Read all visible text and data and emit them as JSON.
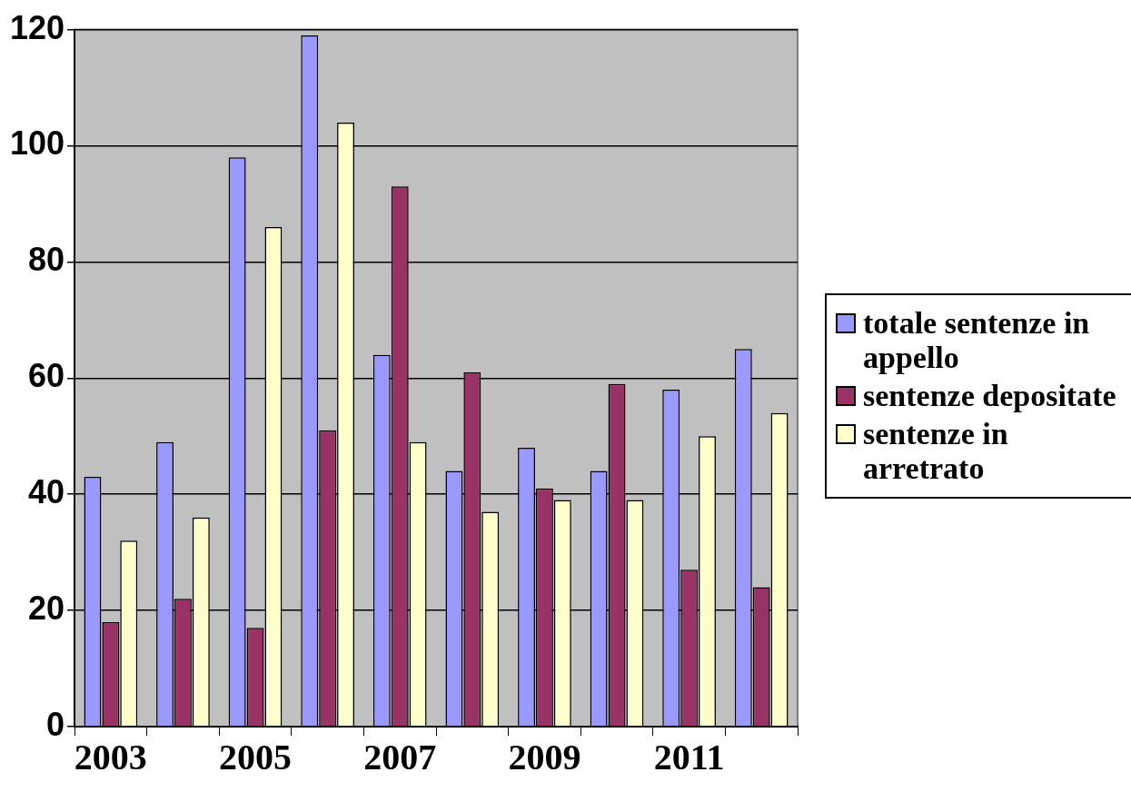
{
  "chart_data": {
    "type": "bar",
    "categories": [
      "2003",
      null,
      "2005",
      null,
      "2007",
      null,
      "2009",
      null,
      "2011",
      null
    ],
    "series": [
      {
        "name": "totale sentenze in appello",
        "color": "#9999ff",
        "values": [
          43,
          49,
          98,
          119,
          64,
          44,
          48,
          44,
          58,
          65
        ]
      },
      {
        "name": "sentenze depositate",
        "color": "#993366",
        "values": [
          18,
          22,
          17,
          51,
          93,
          61,
          41,
          59,
          27,
          24
        ]
      },
      {
        "name": "sentenze in arretrato",
        "color": "#ffffcc",
        "values": [
          32,
          36,
          86,
          104,
          49,
          37,
          39,
          39,
          50,
          54
        ]
      }
    ],
    "ylim": [
      0,
      120
    ],
    "yticks": [
      0,
      20,
      40,
      60,
      80,
      100,
      120
    ],
    "grid": "y",
    "legend": "right"
  }
}
